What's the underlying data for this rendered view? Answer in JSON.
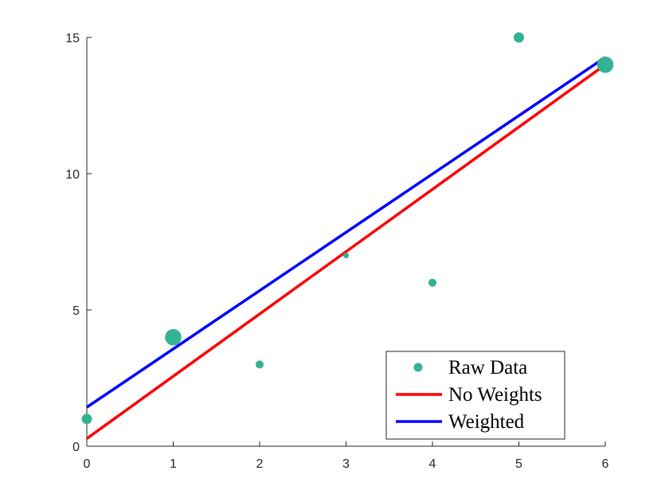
{
  "chart_data": {
    "type": "scatter",
    "title": "",
    "xlabel": "",
    "ylabel": "",
    "xlim": [
      0,
      6
    ],
    "ylim": [
      0,
      15
    ],
    "xticks": [
      0,
      1,
      2,
      3,
      4,
      5,
      6
    ],
    "yticks": [
      0,
      5,
      10,
      15
    ],
    "grid": false,
    "legend_position": "bottom-right",
    "series": [
      {
        "name": "Raw Data",
        "kind": "scatter",
        "color": "#32b394",
        "x": [
          0,
          1,
          2,
          3,
          4,
          5,
          6
        ],
        "y": [
          1,
          4,
          3,
          7,
          6,
          15,
          14
        ],
        "weights": [
          2,
          5,
          1.2,
          0.6,
          1.2,
          2,
          5
        ]
      },
      {
        "name": "No Weights",
        "kind": "line",
        "color": "#ff0000",
        "x": [
          0,
          6
        ],
        "y": [
          0.28,
          14.0
        ]
      },
      {
        "name": "Weighted",
        "kind": "line",
        "color": "#0000ff",
        "x": [
          0,
          6
        ],
        "y": [
          1.43,
          14.27
        ]
      }
    ]
  }
}
